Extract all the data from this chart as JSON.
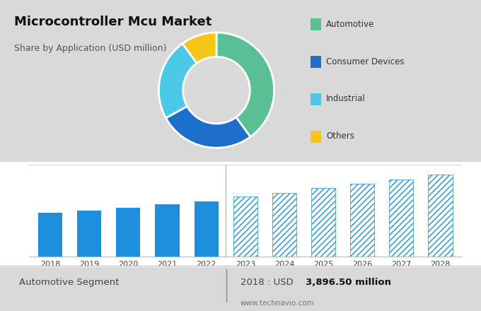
{
  "title": "Microcontroller Mcu Market",
  "subtitle": "Share by Application (USD million)",
  "bg_color": "#d9d9d9",
  "top_bg": "#d9d9d9",
  "bottom_bg": "#ffffff",
  "donut_values": [
    40,
    27,
    23,
    10
  ],
  "donut_colors": [
    "#5abf95",
    "#1e6fcc",
    "#4dc9e8",
    "#f5c518"
  ],
  "donut_labels": [
    "Automotive",
    "Consumer Devices",
    "Industrial",
    "Others"
  ],
  "donut_startangle": 90,
  "bar_years_solid": [
    2018,
    2019,
    2020,
    2021,
    2022
  ],
  "bar_values_solid": [
    3896.5,
    4100,
    4350,
    4650,
    4950
  ],
  "bar_years_hatched": [
    2023,
    2024,
    2025,
    2026,
    2027,
    2028
  ],
  "bar_values_hatched": [
    5400,
    5700,
    6100,
    6500,
    6900,
    7300
  ],
  "bar_color_solid": "#1e8fdd",
  "bar_color_hatched": "#1e8fdd",
  "bar_hatch": "////",
  "footer_left": "Automotive Segment",
  "footer_right": "2018 : USD ",
  "footer_bold": "3,896.50 million",
  "footer_url": "www.technavio.com",
  "ylim_bar": [
    0,
    8200
  ]
}
